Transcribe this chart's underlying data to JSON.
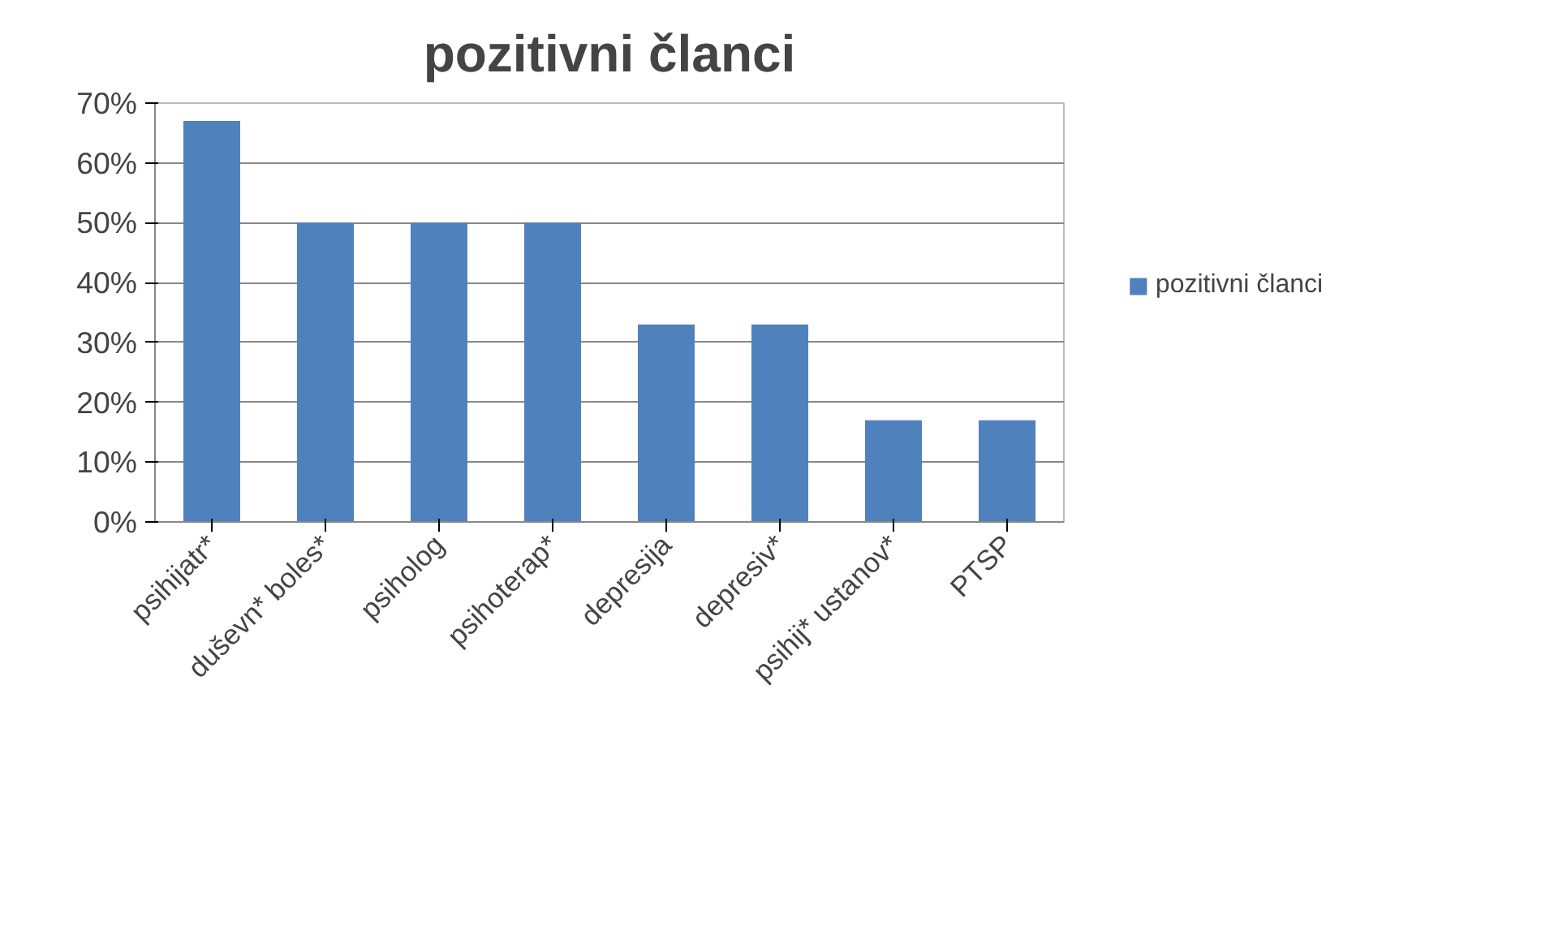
{
  "chart_data": {
    "type": "bar",
    "title": "pozitivni članci",
    "categories": [
      "psihijatr*",
      "duševn* boles*",
      "psiholog",
      "psihoterap*",
      "depresija",
      "depresiv*",
      "psihij* ustanov*",
      "PTSP"
    ],
    "series": [
      {
        "name": "pozitivni članci",
        "color": "#4f81bd",
        "values": [
          67,
          50,
          50,
          50,
          33,
          33,
          17,
          17
        ]
      }
    ],
    "ylim": [
      0,
      70
    ],
    "yticks": [
      {
        "value": 0,
        "label": "0%"
      },
      {
        "value": 10,
        "label": "10%"
      },
      {
        "value": 20,
        "label": "20%"
      },
      {
        "value": 30,
        "label": "30%"
      },
      {
        "value": 40,
        "label": "40%"
      },
      {
        "value": 50,
        "label": "50%"
      },
      {
        "value": 60,
        "label": "60%"
      },
      {
        "value": 70,
        "label": "70%"
      }
    ],
    "grid": "y",
    "legend": "right"
  }
}
